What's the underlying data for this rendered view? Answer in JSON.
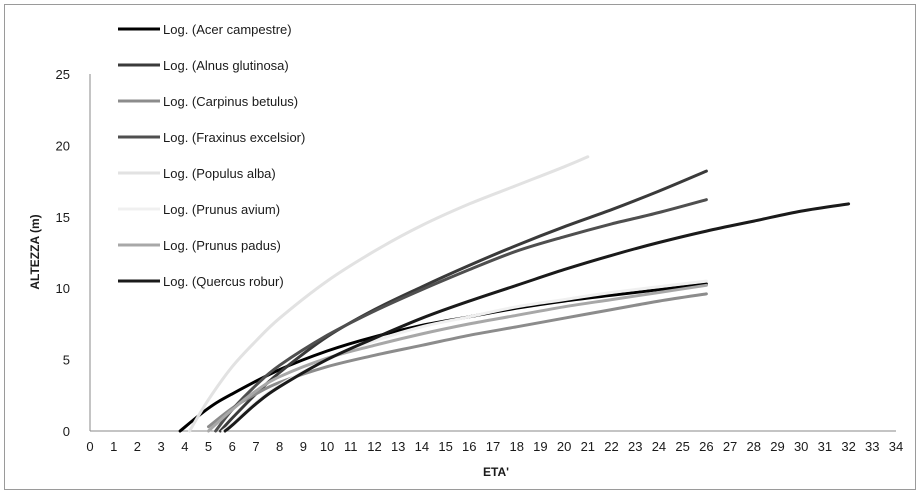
{
  "chart_data": {
    "type": "line",
    "title": "",
    "xlabel": "ETA'",
    "ylabel": "ALTEZZA (m)",
    "xlim": [
      0,
      34
    ],
    "ylim": [
      0,
      25
    ],
    "x_ticks": [
      0,
      1,
      2,
      3,
      4,
      5,
      6,
      7,
      8,
      9,
      10,
      11,
      12,
      13,
      14,
      15,
      16,
      17,
      18,
      19,
      20,
      21,
      22,
      23,
      24,
      25,
      26,
      27,
      28,
      29,
      30,
      31,
      32,
      33,
      34
    ],
    "y_ticks": [
      0,
      5,
      10,
      15,
      20,
      25
    ],
    "grid": false,
    "legend_position": "top-left",
    "series": [
      {
        "name": "Log. (Acer campestre)",
        "color": "#000000",
        "points": [
          [
            3.8,
            0
          ],
          [
            5,
            1.6
          ],
          [
            6,
            2.6
          ],
          [
            8,
            4.3
          ],
          [
            10,
            5.6
          ],
          [
            12,
            6.6
          ],
          [
            14,
            7.4
          ],
          [
            16,
            8.0
          ],
          [
            18,
            8.6
          ],
          [
            20,
            9.1
          ],
          [
            22,
            9.5
          ],
          [
            24,
            9.9
          ],
          [
            26,
            10.3
          ]
        ]
      },
      {
        "name": "Log. (Alnus glutinosa)",
        "color": "#3a3a3a",
        "points": [
          [
            5.5,
            0
          ],
          [
            6,
            0.9
          ],
          [
            7,
            2.6
          ],
          [
            8,
            4.1
          ],
          [
            10,
            6.6
          ],
          [
            12,
            8.5
          ],
          [
            14,
            10.1
          ],
          [
            16,
            11.6
          ],
          [
            18,
            13.0
          ],
          [
            20,
            14.3
          ],
          [
            22,
            15.5
          ],
          [
            24,
            16.8
          ],
          [
            26,
            18.2
          ]
        ]
      },
      {
        "name": "Log. (Carpinus betulus)",
        "color": "#8c8c8c",
        "points": [
          [
            5,
            0.3
          ],
          [
            6,
            1.6
          ],
          [
            7,
            2.6
          ],
          [
            8,
            3.4
          ],
          [
            10,
            4.5
          ],
          [
            12,
            5.3
          ],
          [
            14,
            6.0
          ],
          [
            16,
            6.7
          ],
          [
            18,
            7.3
          ],
          [
            20,
            7.9
          ],
          [
            22,
            8.5
          ],
          [
            24,
            9.1
          ],
          [
            26,
            9.6
          ]
        ]
      },
      {
        "name": "Log. (Fraxinus excelsior)",
        "color": "#4f4f4f",
        "points": [
          [
            5.3,
            0
          ],
          [
            6,
            1.5
          ],
          [
            7,
            3.2
          ],
          [
            8,
            4.6
          ],
          [
            10,
            6.7
          ],
          [
            12,
            8.4
          ],
          [
            14,
            9.9
          ],
          [
            16,
            11.3
          ],
          [
            18,
            12.6
          ],
          [
            20,
            13.6
          ],
          [
            22,
            14.5
          ],
          [
            24,
            15.3
          ],
          [
            26,
            16.2
          ]
        ]
      },
      {
        "name": "Log. (Populus alba)",
        "color": "#e2e2e2",
        "points": [
          [
            4.2,
            0
          ],
          [
            5,
            2.2
          ],
          [
            6,
            4.5
          ],
          [
            7,
            6.3
          ],
          [
            8,
            7.9
          ],
          [
            10,
            10.5
          ],
          [
            12,
            12.6
          ],
          [
            14,
            14.4
          ],
          [
            16,
            15.9
          ],
          [
            18,
            17.2
          ],
          [
            20,
            18.5
          ],
          [
            21,
            19.2
          ]
        ]
      },
      {
        "name": "Log. (Prunus avium)",
        "color": "#f0f0f0",
        "points": [
          [
            5.6,
            0
          ],
          [
            6,
            0.5
          ],
          [
            7,
            2.0
          ],
          [
            8,
            3.2
          ],
          [
            10,
            5.0
          ],
          [
            12,
            6.3
          ],
          [
            14,
            7.3
          ],
          [
            16,
            8.0
          ],
          [
            18,
            8.7
          ],
          [
            20,
            9.2
          ],
          [
            22,
            9.7
          ],
          [
            24,
            10.1
          ],
          [
            26,
            10.5
          ]
        ]
      },
      {
        "name": "Log. (Prunus padus)",
        "color": "#a8a8a8",
        "points": [
          [
            5,
            0
          ],
          [
            6,
            1.5
          ],
          [
            7,
            2.8
          ],
          [
            8,
            3.8
          ],
          [
            10,
            5.1
          ],
          [
            12,
            6.0
          ],
          [
            14,
            6.8
          ],
          [
            16,
            7.5
          ],
          [
            18,
            8.1
          ],
          [
            20,
            8.7
          ],
          [
            22,
            9.2
          ],
          [
            24,
            9.7
          ],
          [
            26,
            10.2
          ]
        ]
      },
      {
        "name": "Log. (Quercus robur)",
        "color": "#1a1a1a",
        "points": [
          [
            5.7,
            0
          ],
          [
            6,
            0.4
          ],
          [
            7,
            1.9
          ],
          [
            8,
            3.1
          ],
          [
            10,
            5.0
          ],
          [
            12,
            6.5
          ],
          [
            14,
            7.9
          ],
          [
            16,
            9.1
          ],
          [
            18,
            10.2
          ],
          [
            20,
            11.3
          ],
          [
            22,
            12.3
          ],
          [
            24,
            13.2
          ],
          [
            26,
            14.0
          ],
          [
            28,
            14.7
          ],
          [
            30,
            15.4
          ],
          [
            32,
            15.9
          ]
        ]
      }
    ]
  }
}
